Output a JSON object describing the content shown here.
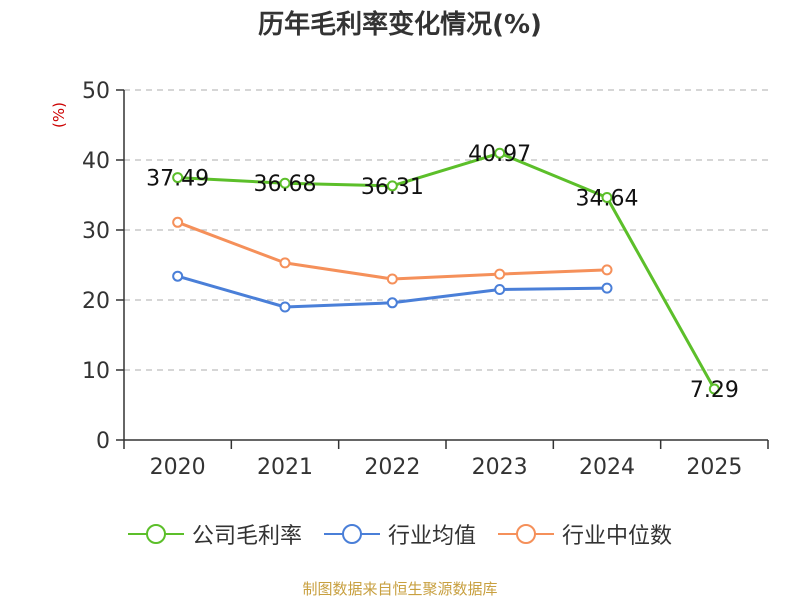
{
  "title": "历年毛利率变化情况(%)",
  "y_unit": "(%)",
  "source": "制图数据来自恒生聚源数据库",
  "chart_data": {
    "type": "line",
    "title": "历年毛利率变化情况(%)",
    "ylabel": "(%)",
    "ylim": [
      0,
      50
    ],
    "yticks": [
      0,
      10,
      20,
      30,
      40,
      50
    ],
    "categories": [
      "2020",
      "2021",
      "2022",
      "2023",
      "2024",
      "2025"
    ],
    "grid": true,
    "legend_position": "bottom",
    "series": [
      {
        "name": "公司毛利率",
        "color": "#5cbf2a",
        "values": [
          37.49,
          36.68,
          36.31,
          40.97,
          34.64,
          7.29
        ],
        "labels": [
          "37.49",
          "36.68",
          "36.31",
          "40.97",
          "34.64",
          "7.29"
        ]
      },
      {
        "name": "行业均值",
        "color": "#4a7fd8",
        "values": [
          23.4,
          19.0,
          19.6,
          21.5,
          21.7,
          null
        ]
      },
      {
        "name": "行业中位数",
        "color": "#f5905a",
        "values": [
          31.1,
          25.3,
          23.0,
          23.7,
          24.3,
          null
        ]
      }
    ]
  }
}
